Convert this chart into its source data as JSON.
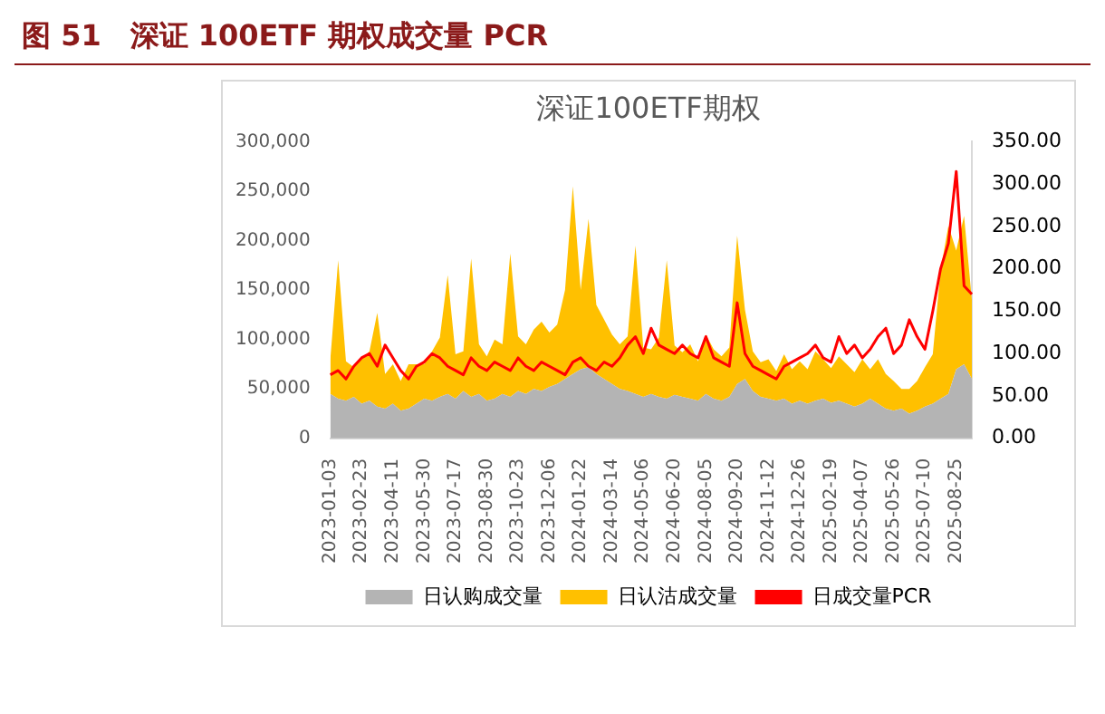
{
  "chart_data": {
    "type": "area",
    "title": "图 51　深证 100ETF 期权成交量 PCR",
    "subtitle": "深证100ETF期权",
    "categories": [
      "2023-01-03",
      null,
      null,
      null,
      "2023-02-23",
      null,
      null,
      null,
      "2023-04-11",
      null,
      null,
      null,
      "2023-05-30",
      null,
      null,
      null,
      "2023-07-17",
      null,
      null,
      null,
      "2023-08-30",
      null,
      null,
      null,
      "2023-10-23",
      null,
      null,
      null,
      "2023-12-06",
      null,
      null,
      null,
      "2024-01-22",
      null,
      null,
      null,
      "2024-03-14",
      null,
      null,
      null,
      "2024-05-06",
      null,
      null,
      null,
      "2024-06-20",
      null,
      null,
      null,
      "2024-08-05",
      null,
      null,
      null,
      "2024-09-20",
      null,
      null,
      null,
      "2024-11-12",
      null,
      null,
      null,
      "2024-12-26",
      null,
      null,
      null,
      "2025-02-19",
      null,
      null,
      null,
      "2025-04-07",
      null,
      null,
      null,
      "2025-05-26",
      null,
      null,
      null,
      "2025-07-10",
      null,
      null,
      null,
      "2025-08-25",
      null,
      null
    ],
    "stacked": true,
    "series": [
      {
        "name": "日认购成交量",
        "color": "#b4b4b4",
        "values": [
          45000,
          40000,
          38000,
          42000,
          35000,
          38000,
          32000,
          30000,
          35000,
          28000,
          30000,
          35000,
          40000,
          38000,
          42000,
          45000,
          40000,
          48000,
          42000,
          45000,
          38000,
          40000,
          45000,
          42000,
          48000,
          45000,
          50000,
          48000,
          52000,
          55000,
          60000,
          65000,
          70000,
          72000,
          65000,
          60000,
          55000,
          50000,
          48000,
          45000,
          42000,
          45000,
          42000,
          40000,
          44000,
          42000,
          40000,
          38000,
          45000,
          40000,
          38000,
          42000,
          55000,
          60000,
          48000,
          42000,
          40000,
          38000,
          40000,
          35000,
          38000,
          35000,
          38000,
          40000,
          36000,
          38000,
          35000,
          32000,
          35000,
          40000,
          35000,
          30000,
          28000,
          30000,
          25000,
          28000,
          32000,
          35000,
          40000,
          45000,
          70000,
          75000,
          60000
        ]
      },
      {
        "name": "日认沽成交量",
        "color": "#ffc000",
        "values": [
          35000,
          140000,
          40000,
          30000,
          45000,
          50000,
          95000,
          35000,
          40000,
          30000,
          45000,
          40000,
          35000,
          50000,
          60000,
          120000,
          45000,
          40000,
          140000,
          50000,
          45000,
          60000,
          50000,
          145000,
          55000,
          50000,
          60000,
          70000,
          55000,
          60000,
          90000,
          190000,
          80000,
          150000,
          70000,
          60000,
          50000,
          45000,
          55000,
          150000,
          50000,
          45000,
          60000,
          140000,
          50000,
          45000,
          55000,
          40000,
          60000,
          50000,
          45000,
          50000,
          150000,
          70000,
          40000,
          35000,
          40000,
          30000,
          45000,
          35000,
          40000,
          35000,
          50000,
          40000,
          35000,
          45000,
          40000,
          35000,
          45000,
          30000,
          45000,
          35000,
          30000,
          20000,
          25000,
          30000,
          40000,
          50000,
          130000,
          170000,
          120000,
          150000,
          80000
        ]
      },
      {
        "name": "日成交量PCR",
        "type": "line",
        "axis": "y2",
        "color": "#ff0000",
        "values": [
          75,
          80,
          70,
          85,
          95,
          100,
          85,
          110,
          95,
          80,
          70,
          85,
          90,
          100,
          95,
          85,
          80,
          75,
          95,
          85,
          80,
          90,
          85,
          80,
          95,
          85,
          80,
          90,
          85,
          80,
          75,
          90,
          95,
          85,
          80,
          90,
          85,
          95,
          110,
          120,
          100,
          130,
          110,
          105,
          100,
          110,
          100,
          95,
          120,
          95,
          90,
          85,
          160,
          100,
          85,
          80,
          75,
          70,
          85,
          90,
          95,
          100,
          110,
          95,
          90,
          120,
          100,
          110,
          95,
          105,
          120,
          130,
          100,
          110,
          140,
          120,
          105,
          150,
          200,
          230,
          315,
          180,
          170
        ]
      }
    ],
    "ylim": [
      0,
      300000
    ],
    "yticks": [
      {
        "value": 0,
        "label": "0"
      },
      {
        "value": 50000,
        "label": "50,000"
      },
      {
        "value": 100000,
        "label": "100,000"
      },
      {
        "value": 150000,
        "label": "150,000"
      },
      {
        "value": 200000,
        "label": "200,000"
      },
      {
        "value": 250000,
        "label": "250,000"
      },
      {
        "value": 300000,
        "label": "300,000"
      }
    ],
    "y2lim": [
      0,
      350
    ],
    "y2ticks": [
      {
        "value": 0,
        "label": "0.00"
      },
      {
        "value": 50,
        "label": "50.00"
      },
      {
        "value": 100,
        "label": "100.00"
      },
      {
        "value": 150,
        "label": "150.00"
      },
      {
        "value": 200,
        "label": "200.00"
      },
      {
        "value": 250,
        "label": "250.00"
      },
      {
        "value": 300,
        "label": "300.00"
      },
      {
        "value": 350,
        "label": "350.00"
      }
    ],
    "legend": "bottom",
    "marker": "none"
  }
}
